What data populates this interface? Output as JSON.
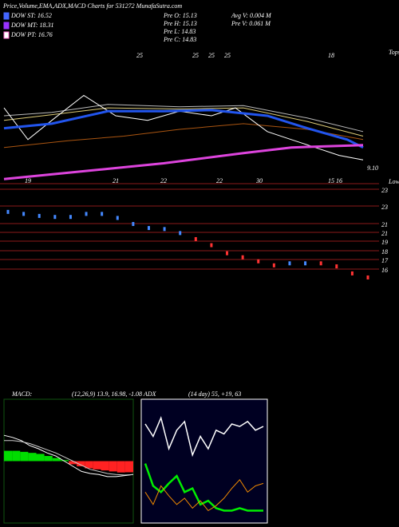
{
  "header": {
    "title": "Price,Volume,EMA,ADX,MACD Charts for 531272  MunafaSutra.com"
  },
  "legend": [
    {
      "text": "DOW ST: 16.52",
      "color": "#4466ff"
    },
    {
      "text": "DOW MT: 18.31",
      "color": "#9933ff"
    },
    {
      "text": "DOW PT: 16.76",
      "color": "#ff66cc"
    }
  ],
  "info": [
    "Pre  O: 15.13",
    "Pre  H: 15.13",
    "Pre  L: 14.83",
    "Pre  C: 14.83",
    "Avg V: 0.004  M",
    "Pre  V: 0.061 M"
  ],
  "chart_data": [
    {
      "type": "line",
      "xlim": [
        0,
        46
      ],
      "ylim": [
        8,
        20
      ],
      "annotations": [
        "9.10",
        "Tops",
        "Lows"
      ],
      "xticks": [
        {
          "value": 3,
          "label": "19"
        },
        {
          "value": 14,
          "label": "21"
        },
        {
          "value": 20,
          "label": "22"
        },
        {
          "value": 27,
          "label": "22"
        },
        {
          "value": 32,
          "label": "30"
        },
        {
          "value": 41,
          "label": "15"
        },
        {
          "value": 42,
          "label": "16"
        }
      ],
      "x2ticks": [
        {
          "value": 17,
          "label": "25"
        },
        {
          "value": 24,
          "label": "25"
        },
        {
          "value": 26,
          "label": "25"
        },
        {
          "value": 28,
          "label": "25"
        },
        {
          "value": 41,
          "label": "18"
        }
      ],
      "series": [
        {
          "color": "#aa5511",
          "width": 1,
          "x": [
            0,
            8,
            15,
            22,
            30,
            38,
            45
          ],
          "values": [
            11.2,
            11.8,
            12.2,
            12.8,
            13.3,
            12.8,
            11.9
          ]
        },
        {
          "color": "#ddcc77",
          "width": 1,
          "x": [
            0,
            6,
            13,
            22,
            30,
            38,
            45
          ],
          "values": [
            13.6,
            14.1,
            14.7,
            14.6,
            14.7,
            13.5,
            12.2
          ]
        },
        {
          "color": "#bbbbbb",
          "width": 1,
          "x": [
            0,
            6,
            13,
            22,
            30,
            38,
            45
          ],
          "values": [
            14.0,
            14.3,
            15.0,
            14.8,
            14.9,
            13.8,
            12.6
          ]
        },
        {
          "color": "#ffffff",
          "width": 1,
          "x": [
            0,
            3,
            6,
            10,
            14,
            18,
            22,
            26,
            29,
            33,
            36,
            39,
            42,
            45
          ],
          "values": [
            14.7,
            11.9,
            13.6,
            15.8,
            14.0,
            13.6,
            14.4,
            14.0,
            14.7,
            12.6,
            11.9,
            11.2,
            10.5,
            10.1
          ]
        },
        {
          "color": "#2255ee",
          "width": 3,
          "x": [
            0,
            6,
            13,
            20,
            26,
            33,
            38,
            43,
            45
          ],
          "values": [
            12.9,
            13.3,
            14.4,
            14.4,
            14.5,
            14.0,
            12.9,
            11.9,
            11.2
          ]
        },
        {
          "color": "#dd44dd",
          "width": 3,
          "x": [
            0,
            10,
            20,
            30,
            36,
            45
          ],
          "values": [
            8.4,
            9.1,
            9.8,
            10.7,
            11.2,
            11.4
          ]
        }
      ]
    },
    {
      "type": "candlestick",
      "ylim": [
        14.5,
        24
      ],
      "levels": [
        "23",
        "23",
        "21",
        "21",
        "19",
        "18",
        "17",
        "16"
      ],
      "values": [
        21.2,
        21.0,
        20.8,
        20.7,
        20.7,
        21.0,
        21.0,
        20.6,
        20.0,
        19.6,
        19.5,
        19.1,
        18.5,
        17.9,
        17.1,
        16.7,
        16.3,
        15.9,
        16.1,
        16.1,
        16.1,
        15.8,
        15.1,
        14.7
      ],
      "colors": [
        "#4488ff",
        "#4488ff",
        "#4488ff",
        "#4488ff",
        "#4488ff",
        "#4488ff",
        "#4488ff",
        "#4488ff",
        "#4488ff",
        "#4488ff",
        "#4488ff",
        "#4488ff",
        "#ff3333",
        "#ff3333",
        "#ff3333",
        "#ff3333",
        "#ff3333",
        "#ff3333",
        "#4488ff",
        "#4488ff",
        "#ff3333",
        "#ff3333",
        "#ff3333",
        "#ff3333"
      ]
    },
    {
      "type": "macd",
      "label": "MACD:",
      "params": "(12,26,9) 13.9, 16.98, -1.08",
      "ylim": [
        -6,
        6
      ],
      "histogram": [
        1.0,
        1.0,
        0.9,
        0.8,
        0.7,
        0.5,
        0.3,
        0.1,
        -0.3,
        -0.5,
        -0.7,
        -0.8,
        -0.9,
        -1.0,
        -1.1,
        -1.08
      ],
      "histogram_colors": {
        "positive": "#00dd00",
        "negative": "#ff2222"
      },
      "series": [
        {
          "color": "#ffffff",
          "width": 1,
          "values": [
            2.5,
            2.3,
            2.0,
            1.5,
            1.2,
            0.8,
            0.5,
            0.0,
            -0.5,
            -1.0,
            -1.2,
            -1.3,
            -1.5,
            -1.5,
            -1.4,
            -1.3
          ]
        },
        {
          "color": "#cccccc",
          "width": 1,
          "values": [
            2.0,
            2.0,
            1.9,
            1.7,
            1.4,
            1.1,
            0.8,
            0.4,
            0.0,
            -0.4,
            -0.8,
            -1.0,
            -1.2,
            -1.3,
            -1.35,
            -1.3
          ]
        }
      ]
    },
    {
      "type": "adx",
      "label": "ADX",
      "params": "(14  day) 55, +19, 63",
      "ylim": [
        0,
        100
      ],
      "series": [
        {
          "color": "#ffffff",
          "width": 1.5,
          "values": [
            80,
            70,
            85,
            60,
            75,
            82,
            55,
            70,
            60,
            75,
            72,
            80,
            78,
            82,
            75,
            78
          ]
        },
        {
          "color": "#00ee00",
          "width": 2.5,
          "values": [
            48,
            30,
            25,
            32,
            38,
            25,
            28,
            15,
            18,
            12,
            10,
            10,
            12,
            10,
            10,
            10
          ]
        },
        {
          "color": "#ee8800",
          "width": 1,
          "values": [
            25,
            15,
            30,
            22,
            15,
            20,
            12,
            18,
            10,
            14,
            20,
            28,
            35,
            25,
            30,
            32
          ]
        }
      ]
    }
  ]
}
